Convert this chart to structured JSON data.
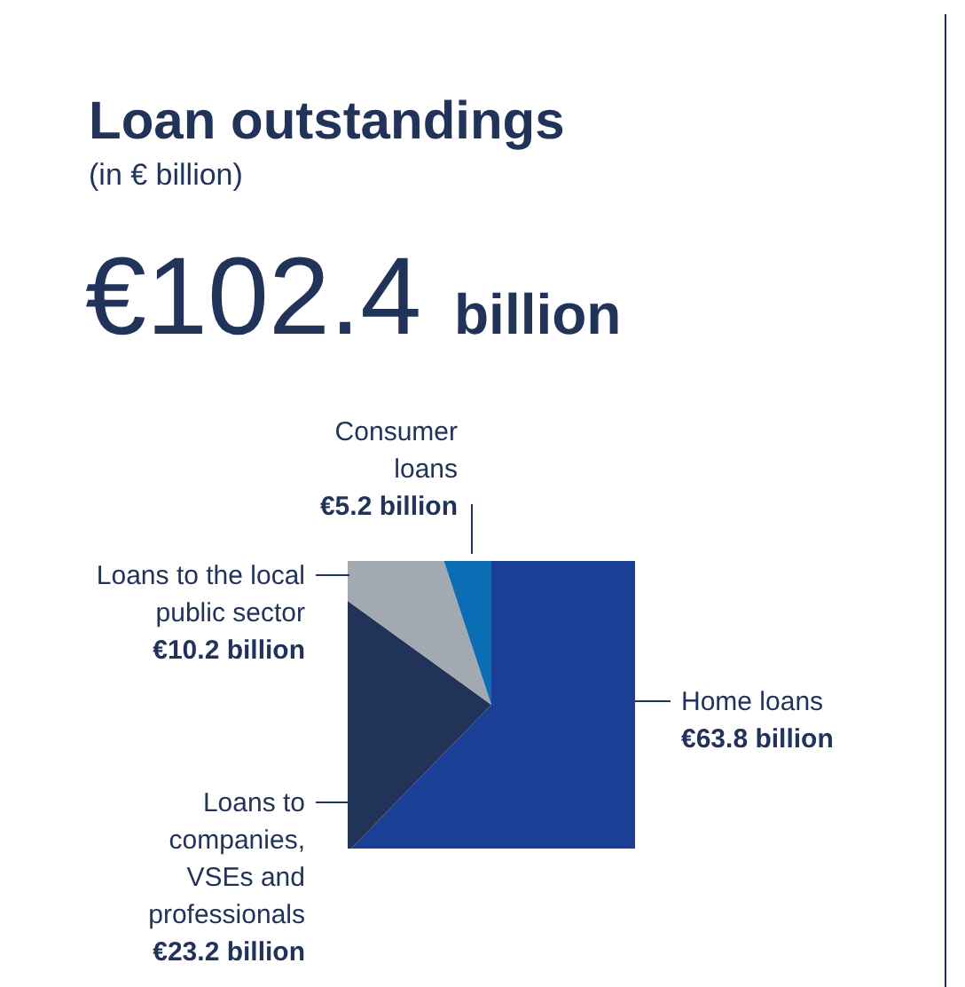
{
  "chart_data": {
    "type": "pie",
    "title": "Loan outstandings",
    "subtitle": "(in € billion)",
    "annotations": [
      "€102.4",
      "billion"
    ],
    "categories": [
      "Home loans",
      "Loans to companies, VSEs and professionals",
      "Loans to the local public sector",
      "Consumer loans"
    ],
    "values": [
      63.8,
      23.2,
      10.2,
      5.2
    ],
    "value_labels": [
      "€63.8 billion",
      "€23.2 billion",
      "€10.2 billion",
      "€5.2 billion"
    ],
    "colors": [
      "#1a3f94",
      "#22335a",
      "#a3a9b0",
      "#0b6db4"
    ]
  }
}
